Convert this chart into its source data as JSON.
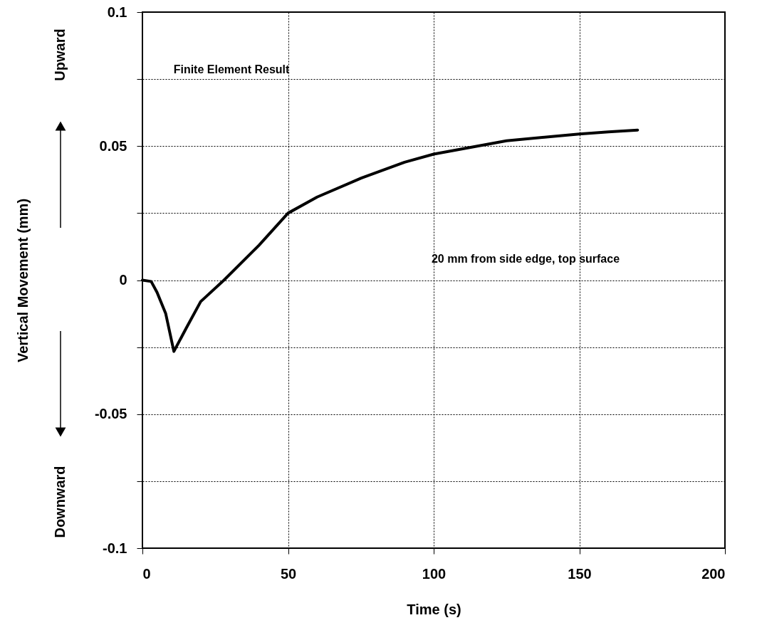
{
  "chart_data": {
    "type": "line",
    "xlabel": "Time  (s)",
    "ylabel": "Vertical Movement  (mm)",
    "x": [
      0,
      3,
      5,
      8,
      10.8,
      15,
      20,
      28,
      40,
      50,
      60,
      75,
      90,
      100,
      115,
      125,
      140,
      150,
      160,
      170
    ],
    "series": [
      {
        "color": "#000000",
        "values": [
          0,
          -0.0005,
          -0.0045,
          -0.0125,
          -0.0266,
          -0.018,
          -0.008,
          0,
          0.013,
          0.025,
          0.031,
          0.038,
          0.044,
          0.047,
          0.05,
          0.052,
          0.0535,
          0.0545,
          0.0553,
          0.056
        ]
      }
    ],
    "xlim": [
      0,
      200
    ],
    "xticks": [
      0,
      50,
      100,
      150,
      200
    ],
    "ylim": [
      -0.1,
      0.1
    ],
    "yticks": [
      -0.1,
      {
        "value": -0.075,
        "label": null
      },
      -0.05,
      {
        "value": -0.025,
        "label": null
      },
      0,
      {
        "value": 0.025,
        "label": null
      },
      0.05,
      {
        "value": 0.075,
        "label": null
      },
      0.1
    ],
    "grid": true,
    "marker": "none",
    "line_style": "solid",
    "annotations": [
      "Finite Element Result",
      "20 mm from side edge, top surface",
      "Upward",
      "Downward"
    ]
  }
}
